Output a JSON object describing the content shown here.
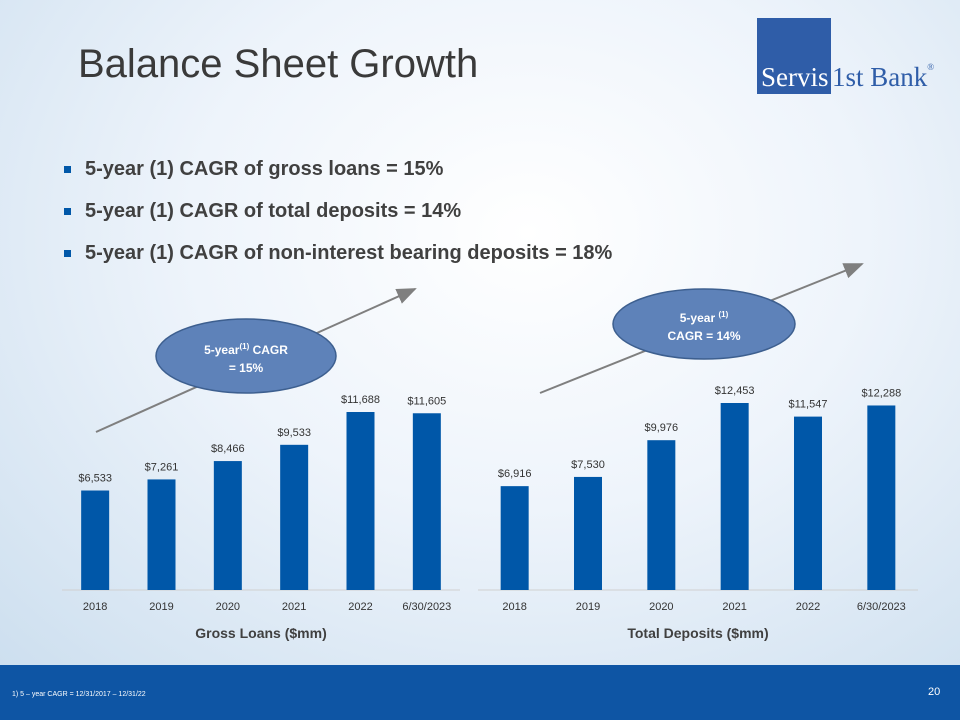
{
  "slide": {
    "title": "Balance Sheet Growth",
    "page_number": "20",
    "footnote": "1)     5 – year CAGR = 12/31/2017 – 12/31/22"
  },
  "logo": {
    "part1": "Servis",
    "part2": "1st Bank",
    "reg": "®"
  },
  "bullets": [
    "5-year (1) CAGR of gross loans = 15%",
    "5-year (1) CAGR of total deposits = 14%",
    "5-year (1) CAGR of non-interest bearing deposits = 18%"
  ],
  "callouts": {
    "loans": {
      "line1_pre": "5-year",
      "sup": "(1)",
      "line1_post": "CAGR",
      "line2": "= 15%"
    },
    "deposits": {
      "line1_pre": "5-year",
      "sup": "(1)",
      "line2": "CAGR = 14%"
    }
  },
  "colors": {
    "bar": "#0057a8",
    "footer": "#0e55a4",
    "oval": "#5e82b9",
    "arrow": "#7f7f7f"
  },
  "chart_data": [
    {
      "type": "bar",
      "title": "",
      "xlabel": "Gross Loans ($mm)",
      "categories": [
        "2018",
        "2019",
        "2020",
        "2021",
        "2022",
        "6/30/2023"
      ],
      "values": [
        6533,
        7261,
        8466,
        9533,
        11688,
        11605
      ],
      "data_labels": [
        "$6,533",
        "$7,261",
        "$8,466",
        "$9,533",
        "$11,688",
        "$11,605"
      ]
    },
    {
      "type": "bar",
      "title": "",
      "xlabel": "Total Deposits ($mm)",
      "categories": [
        "2018",
        "2019",
        "2020",
        "2021",
        "2022",
        "6/30/2023"
      ],
      "values": [
        6916,
        7530,
        9976,
        12453,
        11547,
        12288
      ],
      "data_labels": [
        "$6,916",
        "$7,530",
        "$9,976",
        "$12,453",
        "$11,547",
        "$12,288"
      ]
    }
  ]
}
